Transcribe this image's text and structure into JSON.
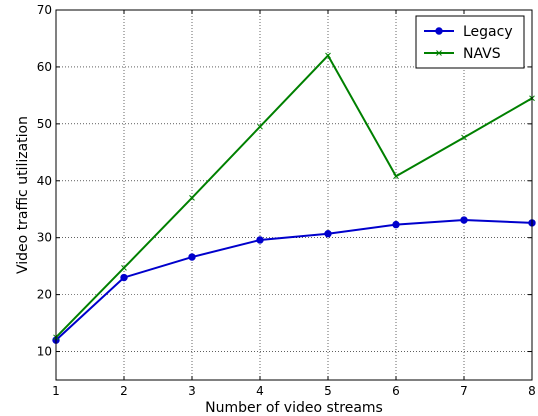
{
  "chart_data": {
    "type": "line",
    "title": "",
    "xlabel": "Number of video streams",
    "ylabel": "Video traffic utilization",
    "x": [
      1,
      2,
      3,
      4,
      5,
      6,
      7,
      8
    ],
    "xlim": [
      1,
      8
    ],
    "ylim": [
      5,
      70
    ],
    "xticks": [
      "1",
      "2",
      "3",
      "4",
      "5",
      "6",
      "7",
      "8"
    ],
    "yticks": [
      "10",
      "20",
      "30",
      "40",
      "50",
      "60",
      "70"
    ],
    "grid": true,
    "legend_position": "top-right",
    "series": [
      {
        "name": "Legacy",
        "color": "#0000cc",
        "marker": "circle",
        "values": [
          12.0,
          23.0,
          26.6,
          29.6,
          30.7,
          32.3,
          33.1,
          32.6
        ]
      },
      {
        "name": "NAVS",
        "color": "#008000",
        "marker": "x",
        "values": [
          12.5,
          24.7,
          37.0,
          49.5,
          62.0,
          40.8,
          47.6,
          54.5
        ]
      }
    ]
  }
}
